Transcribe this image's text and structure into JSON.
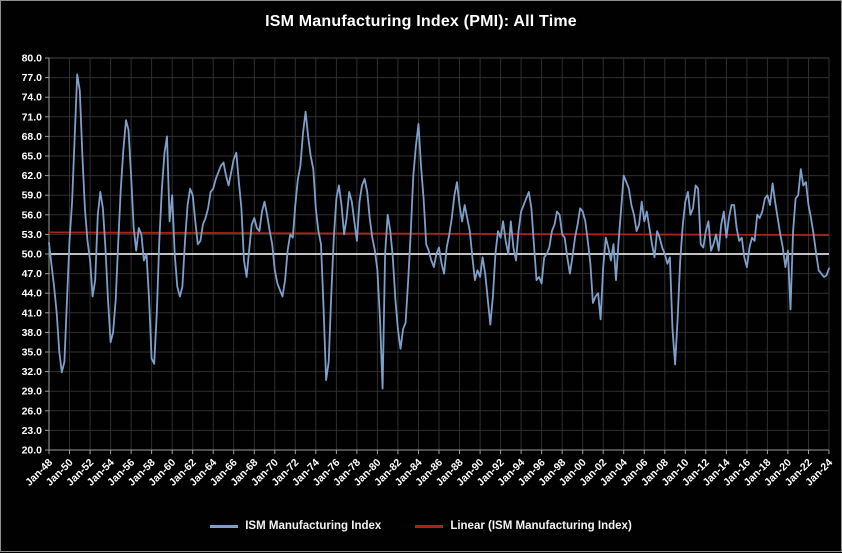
{
  "chart_data": {
    "type": "line",
    "title": "ISM Manufacturing Index (PMI): All Time",
    "background": "#000000",
    "text_color": "#FFFFFF",
    "grid": {
      "show": true,
      "color": "#2F2F2F",
      "axis_line_color": "#9C9C9C"
    },
    "x_axis": {
      "interval_years": 2,
      "tick_labels": [
        "Jan-48",
        "Jan-50",
        "Jan-52",
        "Jan-54",
        "Jan-56",
        "Jan-58",
        "Jan-60",
        "Jan-62",
        "Jan-64",
        "Jan-66",
        "Jan-68",
        "Jan-70",
        "Jan-72",
        "Jan-74",
        "Jan-76",
        "Jan-78",
        "Jan-80",
        "Jan-82",
        "Jan-84",
        "Jan-86",
        "Jan-88",
        "Jan-90",
        "Jan-92",
        "Jan-94",
        "Jan-96",
        "Jan-98",
        "Jan-00",
        "Jan-02",
        "Jan-04",
        "Jan-06",
        "Jan-08",
        "Jan-10",
        "Jan-12",
        "Jan-14",
        "Jan-16",
        "Jan-18",
        "Jan-20",
        "Jan-22",
        "Jan-24"
      ]
    },
    "y_axis": {
      "min": 20,
      "max": 80,
      "tick_step": 3,
      "tick_labels": [
        "80.0",
        "77.0",
        "74.0",
        "71.0",
        "68.0",
        "65.0",
        "62.0",
        "59.0",
        "56.0",
        "53.0",
        "50.0",
        "47.0",
        "44.0",
        "41.0",
        "38.0",
        "35.0",
        "32.0",
        "29.0",
        "26.0",
        "23.0",
        "20.0"
      ]
    },
    "series": [
      {
        "name": "ISM Manufacturing Index",
        "color": "#7D9FC9",
        "sampling": "quarterly",
        "start": "Jan-1948",
        "end": "Jan-2024",
        "values": [
          51.7,
          48.2,
          45,
          41,
          35,
          31.9,
          33.5,
          43,
          52,
          58,
          68,
          77.5,
          75,
          65,
          57,
          52,
          49,
          43.5,
          46,
          56,
          59.5,
          57,
          51,
          43,
          36.5,
          38,
          43,
          52,
          60,
          66,
          70.5,
          69,
          62,
          54,
          50.5,
          54,
          53,
          49,
          50,
          43,
          34,
          33.2,
          41,
          52,
          60,
          65.5,
          68,
          55,
          59,
          50,
          45,
          43.5,
          45,
          52,
          57.5,
          60,
          59,
          55,
          51.5,
          52,
          54.5,
          55.5,
          57,
          59.5,
          60,
          61.5,
          62.5,
          63.5,
          64,
          62,
          60.5,
          62.5,
          64.5,
          65.5,
          61,
          57,
          49,
          46.5,
          50.5,
          54.5,
          55.5,
          54,
          53.5,
          56.5,
          58,
          56,
          53.5,
          51.5,
          47.5,
          45.5,
          44.5,
          43.5,
          46,
          50.5,
          53,
          52.5,
          57.5,
          61.5,
          63.5,
          68.5,
          71.8,
          68,
          65,
          63,
          57,
          53.5,
          51.5,
          42,
          30.7,
          33.5,
          43.5,
          52.5,
          58.5,
          60.5,
          57.5,
          53,
          55.5,
          59.5,
          58,
          55,
          52,
          58,
          60.5,
          61.5,
          59.5,
          55.5,
          52.5,
          50.5,
          47.5,
          40,
          29.4,
          50,
          56,
          53.5,
          49.5,
          43,
          38.5,
          35.5,
          38.5,
          39.5,
          46,
          53.5,
          62,
          66.5,
          69.9,
          63.5,
          58.5,
          51.5,
          50.5,
          49,
          48,
          50,
          51,
          48.5,
          47,
          51,
          53,
          55.5,
          59,
          61,
          57.5,
          55,
          57.5,
          55.5,
          53.5,
          49.5,
          46,
          47.5,
          46.5,
          49.5,
          47,
          43,
          39.2,
          43.5,
          50,
          53.5,
          52.5,
          55,
          52,
          50,
          55,
          51,
          49,
          53.5,
          56.5,
          57.5,
          58.5,
          59.5,
          57,
          51.5,
          46,
          46.5,
          45.5,
          49.5,
          50,
          51,
          53.5,
          54.5,
          56.5,
          56,
          53,
          52.5,
          49.5,
          47,
          49.5,
          52.5,
          54.5,
          57,
          56.5,
          55,
          52,
          48.5,
          42.5,
          43.5,
          44,
          40,
          48,
          52.5,
          51,
          49,
          51.5,
          46,
          52,
          57,
          62,
          61,
          60,
          57.5,
          56,
          53.5,
          54.5,
          58,
          55,
          56.5,
          54,
          51.5,
          49.5,
          53.5,
          52.5,
          51,
          50,
          48.5,
          49.5,
          38.5,
          33.1,
          40,
          49,
          54.5,
          58,
          59.5,
          56,
          57,
          60.5,
          60,
          51.5,
          51,
          53.5,
          55,
          50.5,
          51.5,
          53,
          50.5,
          54.5,
          56.5,
          52.5,
          55.5,
          57.5,
          57.5,
          54,
          52,
          52.5,
          49.5,
          48,
          51,
          52.5,
          52,
          56,
          55.5,
          56.5,
          58.5,
          59,
          57.5,
          60.8,
          58,
          55.5,
          53,
          51,
          48,
          50.5,
          41.5,
          53.5,
          58.5,
          59,
          63,
          60.5,
          61,
          57.5,
          55.5,
          53,
          50,
          47.5,
          47,
          46.5,
          46.7,
          47.8
        ]
      }
    ],
    "trend_line": {
      "name": "Linear (ISM Manufacturing Index)",
      "color": "#AE2117",
      "start_value": 53.3,
      "end_value": 52.9
    },
    "threshold_line": {
      "value": 50,
      "color": "#FFFFFF"
    },
    "legend": {
      "position": "bottom",
      "entries": [
        {
          "label": "ISM Manufacturing Index",
          "color": "#7D9FC9"
        },
        {
          "label": "Linear (ISM Manufacturing Index)",
          "color": "#AE2117"
        }
      ]
    }
  }
}
